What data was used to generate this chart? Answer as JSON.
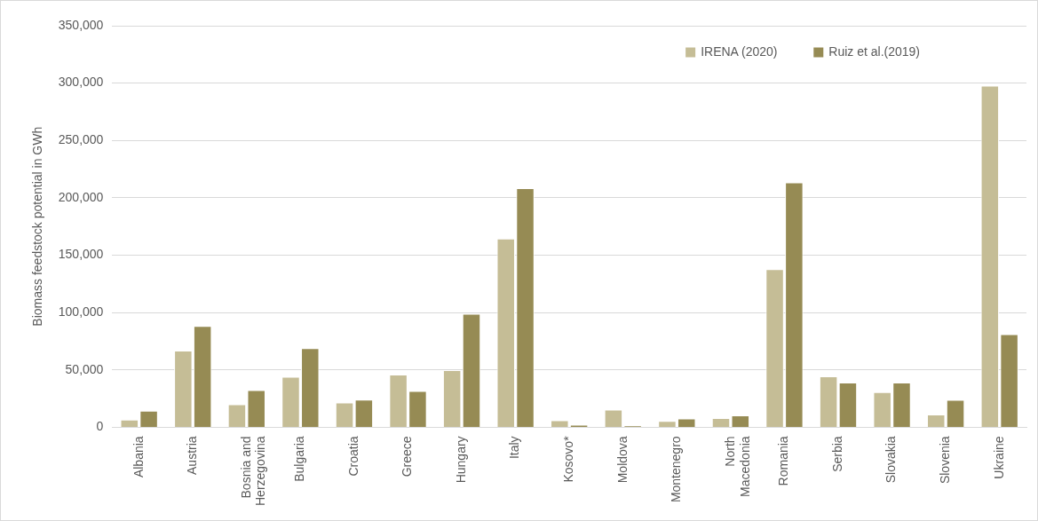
{
  "chart_data": {
    "type": "bar",
    "ylabel": "Biomass feedstock potential in GWh",
    "categories": [
      "Albania",
      "Austria",
      "Bosnia and Herzegovina",
      "Bulgaria",
      "Croatia",
      "Greece",
      "Hungary",
      "Italy",
      "Kosovo*",
      "Moldova",
      "Montenegro",
      "North Macedonia",
      "Romania",
      "Serbia",
      "Slovakia",
      "Slovenia",
      "Ukraine"
    ],
    "series": [
      {
        "name": "IRENA (2020)",
        "color": "#c5bd96",
        "values": [
          6700,
          66800,
          20000,
          44000,
          21600,
          46000,
          49900,
          164600,
          6200,
          15400,
          5600,
          8100,
          137900,
          44400,
          30600,
          11200,
          297800
        ]
      },
      {
        "name": "Ruiz et al.(2019)",
        "color": "#968b54",
        "values": [
          14400,
          88400,
          32400,
          69000,
          24100,
          31600,
          98900,
          208400,
          2200,
          1400,
          7600,
          10400,
          213500,
          39000,
          39000,
          23900,
          81200
        ]
      }
    ],
    "ylim": [
      0,
      350000
    ],
    "yticks": [
      0,
      {
        "value": 50000,
        "label": "50,000"
      },
      {
        "value": 100000,
        "label": "100,000"
      },
      {
        "value": 150000,
        "label": "150,000"
      },
      {
        "value": 200000,
        "label": "200,000"
      },
      {
        "value": 250000,
        "label": "250,000"
      },
      {
        "value": 300000,
        "label": "300,000"
      },
      {
        "value": 350000,
        "label": "350,000"
      }
    ],
    "grid": "y",
    "legend": "top right"
  }
}
